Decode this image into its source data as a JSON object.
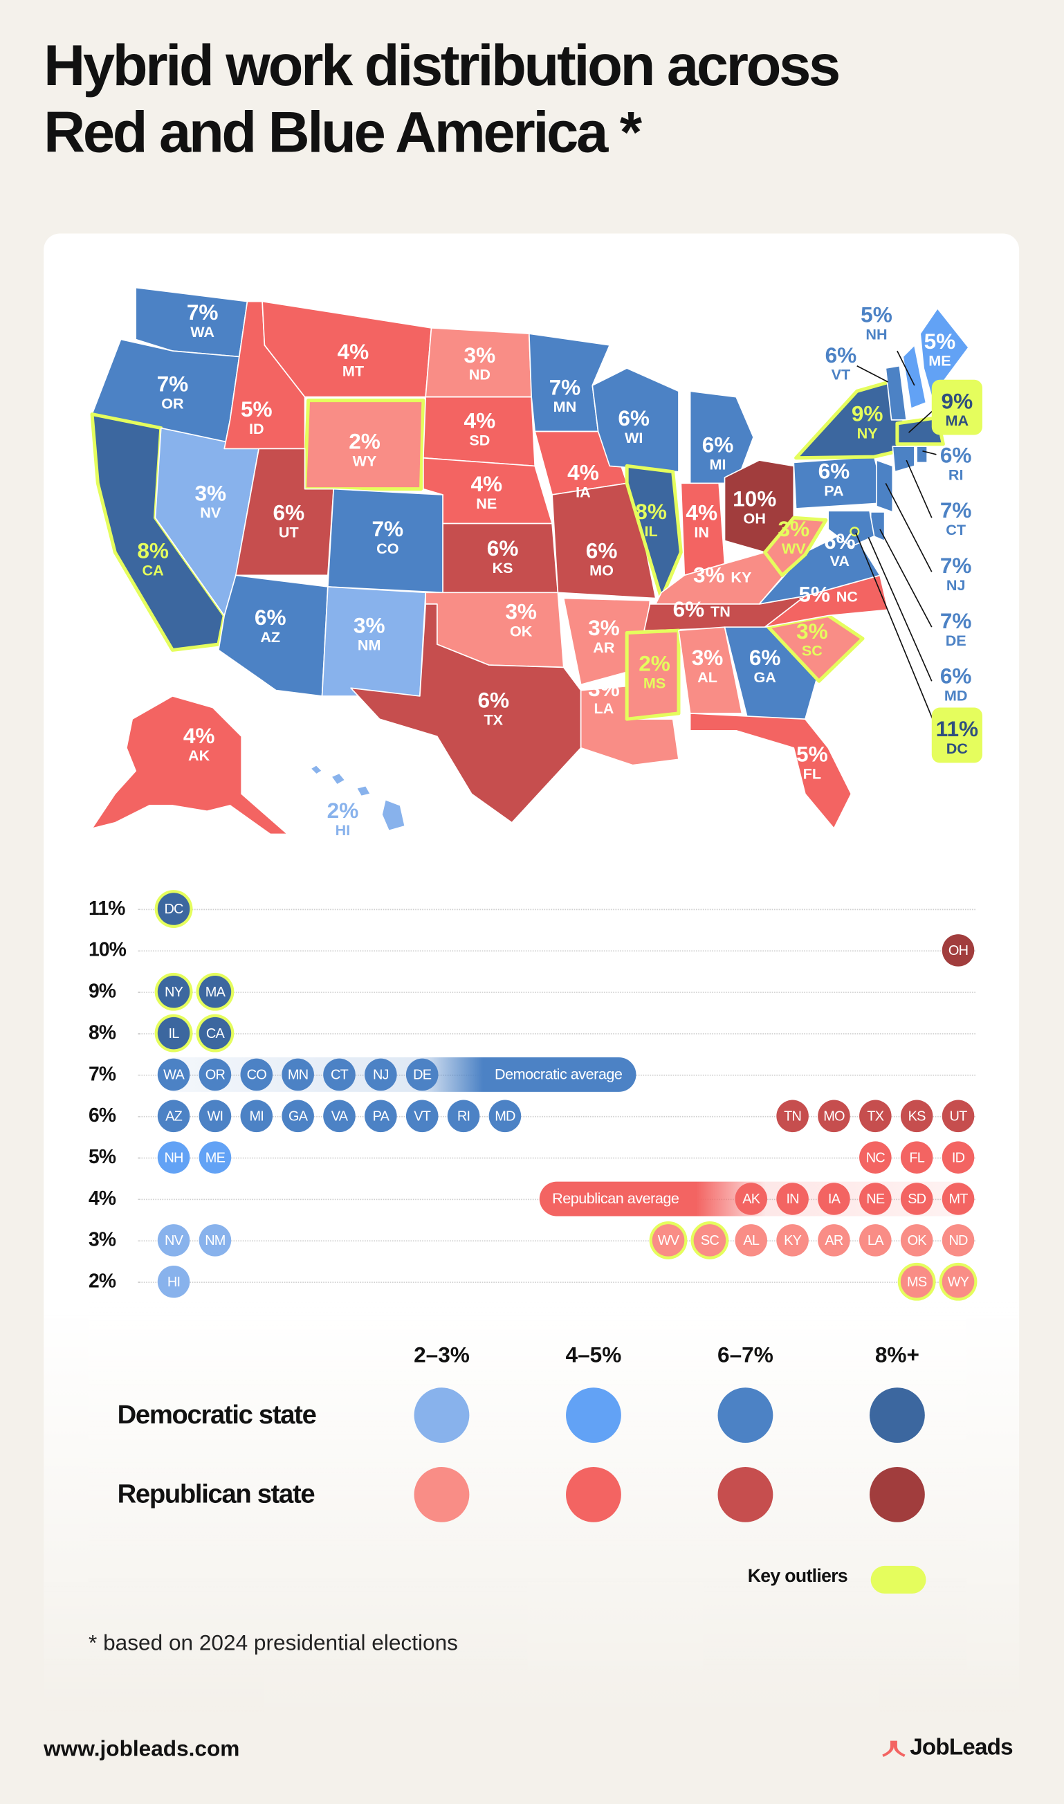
{
  "title": "Hybrid work distribution across Red and Blue America *",
  "title_lines": [
    "Hybrid work distribution across",
    "Red and Blue America *"
  ],
  "footnote": "* based on 2024 presidential elections",
  "footer": {
    "website": "www.jobleads.com",
    "brand": "JobLeads"
  },
  "colors": {
    "dem_2_3": "#88B2EC",
    "dem_4_5": "#62A2F5",
    "dem_6_7": "#4C82C5",
    "dem_8_plus": "#3C679F",
    "rep_2_3": "#F98D86",
    "rep_4_5": "#F36462",
    "rep_6_7": "#C64E4E",
    "rep_8_plus": "#A13D3D",
    "outlier": "#E5FD5D",
    "background": "#F4F1EB"
  },
  "legend": {
    "headers": [
      "2–3%",
      "4–5%",
      "6–7%",
      "8%+"
    ],
    "rows": [
      "Democratic state",
      "Republican state"
    ],
    "outlier_label": "Key outliers"
  },
  "chart_data": {
    "type": "map + dot plot",
    "title": "Hybrid work distribution across Red and Blue America *",
    "unit": "%",
    "states": [
      {
        "abbr": "DC",
        "pct": 11,
        "party": "D",
        "outlier": true
      },
      {
        "abbr": "NY",
        "pct": 9,
        "party": "D",
        "outlier": true
      },
      {
        "abbr": "MA",
        "pct": 9,
        "party": "D",
        "outlier": true
      },
      {
        "abbr": "IL",
        "pct": 8,
        "party": "D",
        "outlier": true
      },
      {
        "abbr": "CA",
        "pct": 8,
        "party": "D",
        "outlier": true
      },
      {
        "abbr": "WA",
        "pct": 7,
        "party": "D",
        "outlier": false
      },
      {
        "abbr": "OR",
        "pct": 7,
        "party": "D",
        "outlier": false
      },
      {
        "abbr": "CO",
        "pct": 7,
        "party": "D",
        "outlier": false
      },
      {
        "abbr": "MN",
        "pct": 7,
        "party": "D",
        "outlier": false
      },
      {
        "abbr": "CT",
        "pct": 7,
        "party": "D",
        "outlier": false
      },
      {
        "abbr": "NJ",
        "pct": 7,
        "party": "D",
        "outlier": false
      },
      {
        "abbr": "DE",
        "pct": 7,
        "party": "D",
        "outlier": false
      },
      {
        "abbr": "AZ",
        "pct": 6,
        "party": "D",
        "outlier": false
      },
      {
        "abbr": "WI",
        "pct": 6,
        "party": "D",
        "outlier": false
      },
      {
        "abbr": "MI",
        "pct": 6,
        "party": "D",
        "outlier": false
      },
      {
        "abbr": "GA",
        "pct": 6,
        "party": "D",
        "outlier": false
      },
      {
        "abbr": "VA",
        "pct": 6,
        "party": "D",
        "outlier": false
      },
      {
        "abbr": "PA",
        "pct": 6,
        "party": "D",
        "outlier": false
      },
      {
        "abbr": "VT",
        "pct": 6,
        "party": "D",
        "outlier": false
      },
      {
        "abbr": "RI",
        "pct": 6,
        "party": "D",
        "outlier": false
      },
      {
        "abbr": "MD",
        "pct": 6,
        "party": "D",
        "outlier": false
      },
      {
        "abbr": "NH",
        "pct": 5,
        "party": "D",
        "outlier": false
      },
      {
        "abbr": "ME",
        "pct": 5,
        "party": "D",
        "outlier": false
      },
      {
        "abbr": "NV",
        "pct": 3,
        "party": "D",
        "outlier": false
      },
      {
        "abbr": "NM",
        "pct": 3,
        "party": "D",
        "outlier": false
      },
      {
        "abbr": "HI",
        "pct": 2,
        "party": "D",
        "outlier": false
      },
      {
        "abbr": "OH",
        "pct": 10,
        "party": "R",
        "outlier": false
      },
      {
        "abbr": "TN",
        "pct": 6,
        "party": "R",
        "outlier": false
      },
      {
        "abbr": "MO",
        "pct": 6,
        "party": "R",
        "outlier": false
      },
      {
        "abbr": "TX",
        "pct": 6,
        "party": "R",
        "outlier": false
      },
      {
        "abbr": "KS",
        "pct": 6,
        "party": "R",
        "outlier": false
      },
      {
        "abbr": "UT",
        "pct": 6,
        "party": "R",
        "outlier": false
      },
      {
        "abbr": "NC",
        "pct": 5,
        "party": "R",
        "outlier": false
      },
      {
        "abbr": "FL",
        "pct": 5,
        "party": "R",
        "outlier": false
      },
      {
        "abbr": "ID",
        "pct": 5,
        "party": "R",
        "outlier": false
      },
      {
        "abbr": "AK",
        "pct": 4,
        "party": "R",
        "outlier": false
      },
      {
        "abbr": "IN",
        "pct": 4,
        "party": "R",
        "outlier": false
      },
      {
        "abbr": "IA",
        "pct": 4,
        "party": "R",
        "outlier": false
      },
      {
        "abbr": "NE",
        "pct": 4,
        "party": "R",
        "outlier": false
      },
      {
        "abbr": "SD",
        "pct": 4,
        "party": "R",
        "outlier": false
      },
      {
        "abbr": "MT",
        "pct": 4,
        "party": "R",
        "outlier": false
      },
      {
        "abbr": "WV",
        "pct": 3,
        "party": "R",
        "outlier": true
      },
      {
        "abbr": "SC",
        "pct": 3,
        "party": "R",
        "outlier": true
      },
      {
        "abbr": "AL",
        "pct": 3,
        "party": "R",
        "outlier": false
      },
      {
        "abbr": "KY",
        "pct": 3,
        "party": "R",
        "outlier": false
      },
      {
        "abbr": "AR",
        "pct": 3,
        "party": "R",
        "outlier": false
      },
      {
        "abbr": "LA",
        "pct": 3,
        "party": "R",
        "outlier": false
      },
      {
        "abbr": "OK",
        "pct": 3,
        "party": "R",
        "outlier": false
      },
      {
        "abbr": "ND",
        "pct": 3,
        "party": "R",
        "outlier": false
      },
      {
        "abbr": "MS",
        "pct": 2,
        "party": "R",
        "outlier": true
      },
      {
        "abbr": "WY",
        "pct": 2,
        "party": "R",
        "outlier": true
      }
    ],
    "dot_plot": {
      "rows": [
        {
          "label": "11%",
          "dem": [
            "DC"
          ],
          "rep": []
        },
        {
          "label": "10%",
          "dem": [],
          "rep": [
            "OH"
          ]
        },
        {
          "label": "9%",
          "dem": [
            "NY",
            "MA"
          ],
          "rep": []
        },
        {
          "label": "8%",
          "dem": [
            "IL",
            "CA"
          ],
          "rep": []
        },
        {
          "label": "7%",
          "dem": [
            "WA",
            "OR",
            "CO",
            "MN",
            "CT",
            "NJ",
            "DE"
          ],
          "rep": []
        },
        {
          "label": "6%",
          "dem": [
            "AZ",
            "WI",
            "MI",
            "GA",
            "VA",
            "PA",
            "VT",
            "RI",
            "MD"
          ],
          "rep": [
            "TN",
            "MO",
            "TX",
            "KS",
            "UT"
          ]
        },
        {
          "label": "5%",
          "dem": [
            "NH",
            "ME"
          ],
          "rep": [
            "NC",
            "FL",
            "ID"
          ]
        },
        {
          "label": "4%",
          "dem": [],
          "rep": [
            "AK",
            "IN",
            "IA",
            "NE",
            "SD",
            "MT"
          ]
        },
        {
          "label": "3%",
          "dem": [
            "NV",
            "NM"
          ],
          "rep": [
            "WV",
            "SC",
            "AL",
            "KY",
            "AR",
            "LA",
            "OK",
            "ND"
          ]
        },
        {
          "label": "2%",
          "dem": [
            "HI"
          ],
          "rep": [
            "MS",
            "WY"
          ]
        }
      ],
      "averages": [
        {
          "label": "Democratic average",
          "value": 7,
          "party": "D"
        },
        {
          "label": "Republican average",
          "value": 4,
          "party": "R"
        }
      ]
    }
  }
}
